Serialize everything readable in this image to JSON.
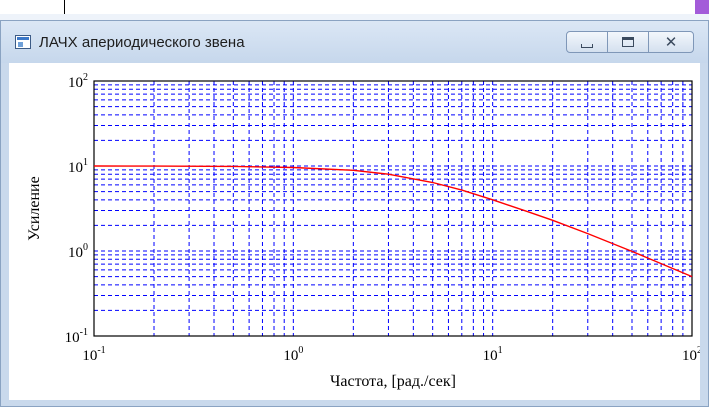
{
  "window": {
    "title": "ЛАЧХ апериодического звена",
    "controls": {
      "minimize": "minimize",
      "maximize": "maximize",
      "close": "close"
    }
  },
  "chart_data": {
    "type": "line",
    "xscale": "log",
    "yscale": "log",
    "xlim": [
      0.1,
      100
    ],
    "ylim": [
      0.1,
      100
    ],
    "xlabel": "Частота, [рад./сек]",
    "ylabel": "Усиление",
    "x_ticks": [
      "10",
      "10",
      "10",
      "10"
    ],
    "x_tick_exponents": [
      "-1",
      "0",
      "1",
      "2"
    ],
    "y_ticks": [
      "10",
      "10",
      "10",
      "10"
    ],
    "y_tick_exponents": [
      "2",
      "1",
      "0",
      "-1"
    ],
    "grid": true,
    "grid_color": "#0000ff",
    "series": [
      {
        "color": "#ff0000",
        "x": [
          0.1,
          0.2,
          0.5,
          1,
          2,
          3,
          5,
          7,
          10,
          15,
          20,
          30,
          50,
          70,
          100
        ],
        "y": [
          10,
          9.98,
          9.9,
          9.6,
          8.9,
          8.0,
          6.4,
          5.2,
          4.0,
          2.9,
          2.3,
          1.6,
          0.99,
          0.71,
          0.5
        ]
      }
    ]
  }
}
